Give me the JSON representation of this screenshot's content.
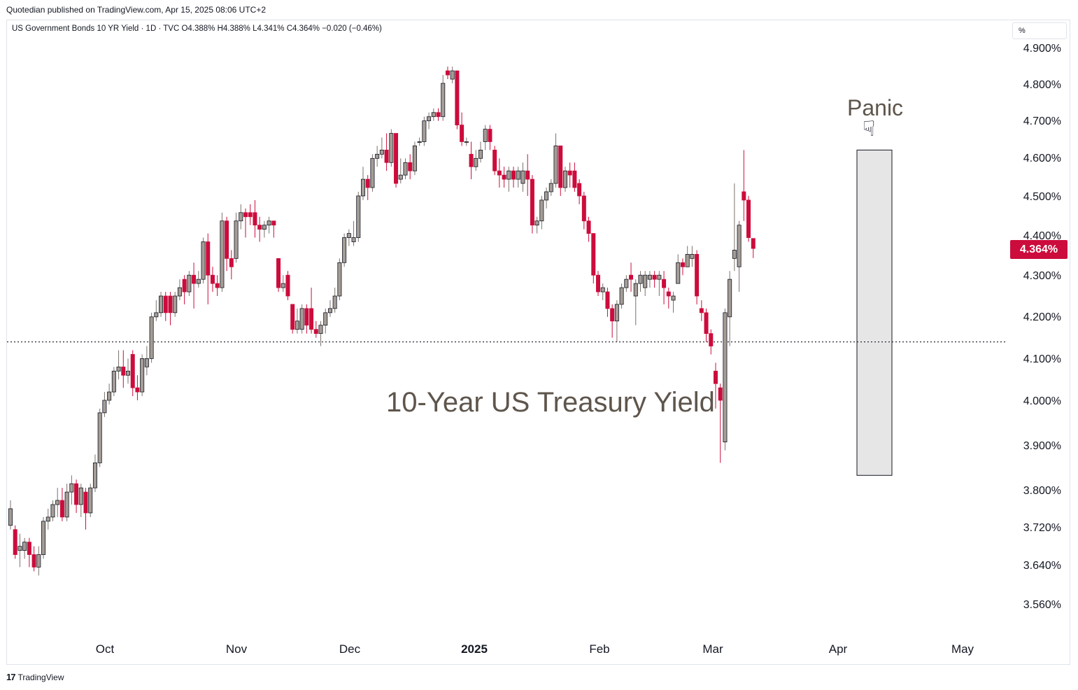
{
  "publisher": "Quotedian published on TradingView.com, Apr 15, 2025 08:06 UTC+2",
  "symbol_line": "US Government Bonds 10 YR Yield · 1D · TVC  O4.388%  H4.388%  L4.341%  C4.364%  −0.020 (−0.46%)",
  "unit_label": "%",
  "last_price_label": "4.364%",
  "footer": {
    "logo_mark": "17",
    "brand": "TradingView"
  },
  "colors": {
    "up": "#a59d96",
    "down": "#cc0c3c",
    "annotation_text": "#5e554c",
    "highlight_box": "#e6e6e6"
  },
  "annotations": {
    "title": "10-Year US Treasury Yield",
    "panic_label": "Panic",
    "panic_icon": "pointing-down-hand-icon"
  },
  "chart_data": {
    "type": "candlestick",
    "title": "10-Year US Treasury Yield",
    "ylabel": "%",
    "ylim": [
      3.5,
      4.95
    ],
    "y_ticks": [
      "4.900%",
      "4.800%",
      "4.700%",
      "4.600%",
      "4.500%",
      "4.400%",
      "4.300%",
      "4.200%",
      "4.100%",
      "4.000%",
      "3.900%",
      "3.800%",
      "3.720%",
      "3.640%",
      "3.560%"
    ],
    "x_ticks": [
      "Oct",
      "Nov",
      "Dec",
      "2025",
      "Feb",
      "Mar",
      "Apr",
      "May"
    ],
    "reference_line": 4.14,
    "highlight_range": {
      "from_index": 156,
      "to_index": 161,
      "y_low": 3.82,
      "y_high": 4.6
    },
    "last_close": 4.364,
    "candles": [
      [
        3.7,
        3.74,
        3.69,
        3.76
      ],
      [
        3.69,
        3.63,
        3.62,
        3.7
      ],
      [
        3.64,
        3.65,
        3.6,
        3.68
      ],
      [
        3.64,
        3.66,
        3.62,
        3.67
      ],
      [
        3.66,
        3.63,
        3.6,
        3.67
      ],
      [
        3.63,
        3.6,
        3.59,
        3.65
      ],
      [
        3.6,
        3.63,
        3.58,
        3.65
      ],
      [
        3.63,
        3.71,
        3.62,
        3.72
      ],
      [
        3.71,
        3.72,
        3.69,
        3.74
      ],
      [
        3.72,
        3.75,
        3.71,
        3.76
      ],
      [
        3.75,
        3.76,
        3.72,
        3.79
      ],
      [
        3.76,
        3.72,
        3.71,
        3.79
      ],
      [
        3.72,
        3.78,
        3.71,
        3.8
      ],
      [
        3.78,
        3.8,
        3.75,
        3.82
      ],
      [
        3.8,
        3.75,
        3.73,
        3.81
      ],
      [
        3.75,
        3.79,
        3.72,
        3.8
      ],
      [
        3.78,
        3.73,
        3.69,
        3.79
      ],
      [
        3.73,
        3.79,
        3.72,
        3.8
      ],
      [
        3.79,
        3.85,
        3.78,
        3.87
      ],
      [
        3.85,
        3.97,
        3.84,
        3.98
      ],
      [
        3.97,
        4.0,
        3.96,
        4.02
      ],
      [
        4.0,
        4.02,
        3.99,
        4.04
      ],
      [
        4.02,
        4.07,
        4.01,
        4.08
      ],
      [
        4.07,
        4.08,
        4.05,
        4.12
      ],
      [
        4.08,
        4.06,
        4.03,
        4.12
      ],
      [
        4.06,
        4.07,
        4.04,
        4.1
      ],
      [
        4.11,
        4.03,
        4.01,
        4.12
      ],
      [
        4.03,
        4.02,
        4.0,
        4.06
      ],
      [
        4.02,
        4.1,
        4.01,
        4.11
      ],
      [
        4.08,
        4.1,
        4.06,
        4.13
      ],
      [
        4.1,
        4.2,
        4.09,
        4.21
      ],
      [
        4.2,
        4.21,
        4.19,
        4.24
      ],
      [
        4.21,
        4.25,
        4.2,
        4.26
      ],
      [
        4.25,
        4.21,
        4.19,
        4.26
      ],
      [
        4.25,
        4.21,
        4.18,
        4.26
      ],
      [
        4.21,
        4.25,
        4.2,
        4.26
      ],
      [
        4.25,
        4.27,
        4.24,
        4.29
      ],
      [
        4.29,
        4.26,
        4.23,
        4.3
      ],
      [
        4.26,
        4.3,
        4.25,
        4.31
      ],
      [
        4.3,
        4.28,
        4.22,
        4.33
      ],
      [
        4.28,
        4.29,
        4.27,
        4.31
      ],
      [
        4.29,
        4.38,
        4.28,
        4.39
      ],
      [
        4.38,
        4.3,
        4.23,
        4.4
      ],
      [
        4.3,
        4.28,
        4.26,
        4.32
      ],
      [
        4.28,
        4.27,
        4.25,
        4.3
      ],
      [
        4.27,
        4.43,
        4.26,
        4.45
      ],
      [
        4.43,
        4.34,
        4.31,
        4.44
      ],
      [
        4.34,
        4.32,
        4.29,
        4.36
      ],
      [
        4.34,
        4.43,
        4.33,
        4.45
      ],
      [
        4.43,
        4.45,
        4.41,
        4.47
      ],
      [
        4.45,
        4.44,
        4.39,
        4.46
      ],
      [
        4.45,
        4.44,
        4.42,
        4.47
      ],
      [
        4.45,
        4.42,
        4.39,
        4.48
      ],
      [
        4.42,
        4.41,
        4.38,
        4.44
      ],
      [
        4.41,
        4.42,
        4.39,
        4.43
      ],
      [
        4.42,
        4.43,
        4.4,
        4.44
      ],
      [
        4.43,
        4.42,
        4.39,
        4.43
      ],
      [
        4.34,
        4.27,
        4.26,
        4.34
      ],
      [
        4.27,
        4.28,
        4.26,
        4.3
      ],
      [
        4.3,
        4.25,
        4.24,
        4.31
      ],
      [
        4.23,
        4.17,
        4.16,
        4.23
      ],
      [
        4.17,
        4.19,
        4.16,
        4.22
      ],
      [
        4.17,
        4.22,
        4.16,
        4.23
      ],
      [
        4.22,
        4.18,
        4.16,
        4.23
      ],
      [
        4.22,
        4.17,
        4.16,
        4.27
      ],
      [
        4.17,
        4.16,
        4.15,
        4.19
      ],
      [
        4.16,
        4.18,
        4.13,
        4.19
      ],
      [
        4.18,
        4.21,
        4.16,
        4.22
      ],
      [
        4.21,
        4.22,
        4.2,
        4.24
      ],
      [
        4.22,
        4.25,
        4.21,
        4.27
      ],
      [
        4.25,
        4.33,
        4.24,
        4.34
      ],
      [
        4.33,
        4.39,
        4.32,
        4.4
      ],
      [
        4.39,
        4.4,
        4.37,
        4.41
      ],
      [
        4.38,
        4.39,
        4.37,
        4.43
      ],
      [
        4.39,
        4.49,
        4.38,
        4.5
      ],
      [
        4.49,
        4.53,
        4.48,
        4.56
      ],
      [
        4.53,
        4.51,
        4.48,
        4.54
      ],
      [
        4.51,
        4.58,
        4.5,
        4.59
      ],
      [
        4.58,
        4.59,
        4.56,
        4.61
      ],
      [
        4.59,
        4.6,
        4.58,
        4.63
      ],
      [
        4.6,
        4.57,
        4.55,
        4.64
      ],
      [
        4.57,
        4.64,
        4.56,
        4.65
      ],
      [
        4.64,
        4.52,
        4.51,
        4.64
      ],
      [
        4.53,
        4.54,
        4.52,
        4.58
      ],
      [
        4.54,
        4.57,
        4.53,
        4.58
      ],
      [
        4.57,
        4.55,
        4.53,
        4.59
      ],
      [
        4.55,
        4.61,
        4.54,
        4.62
      ],
      [
        4.62,
        4.62,
        4.61,
        4.63
      ],
      [
        4.62,
        4.67,
        4.61,
        4.68
      ],
      [
        4.67,
        4.68,
        4.65,
        4.69
      ],
      [
        4.68,
        4.69,
        4.67,
        4.7
      ],
      [
        4.69,
        4.68,
        4.67,
        4.7
      ],
      [
        4.68,
        4.76,
        4.67,
        4.78
      ],
      [
        4.79,
        4.78,
        4.77,
        4.8
      ],
      [
        4.77,
        4.79,
        4.76,
        4.8
      ],
      [
        4.79,
        4.66,
        4.65,
        4.79
      ],
      [
        4.66,
        4.62,
        4.61,
        4.69
      ],
      [
        4.62,
        4.62,
        4.61,
        4.63
      ],
      [
        4.59,
        4.56,
        4.53,
        4.62
      ],
      [
        4.56,
        4.58,
        4.55,
        4.6
      ],
      [
        4.58,
        4.6,
        4.57,
        4.62
      ],
      [
        4.62,
        4.65,
        4.6,
        4.66
      ],
      [
        4.65,
        4.62,
        4.6,
        4.66
      ],
      [
        4.6,
        4.55,
        4.54,
        4.61
      ],
      [
        4.55,
        4.54,
        4.51,
        4.58
      ],
      [
        4.54,
        4.53,
        4.51,
        4.56
      ],
      [
        4.53,
        4.55,
        4.5,
        4.56
      ],
      [
        4.55,
        4.53,
        4.51,
        4.56
      ],
      [
        4.53,
        4.55,
        4.51,
        4.56
      ],
      [
        4.52,
        4.55,
        4.5,
        4.57
      ],
      [
        4.55,
        4.53,
        4.49,
        4.59
      ],
      [
        4.53,
        4.42,
        4.4,
        4.54
      ],
      [
        4.42,
        4.43,
        4.4,
        4.44
      ],
      [
        4.43,
        4.48,
        4.41,
        4.49
      ],
      [
        4.48,
        4.5,
        4.46,
        4.51
      ],
      [
        4.5,
        4.52,
        4.49,
        4.53
      ],
      [
        4.52,
        4.61,
        4.51,
        4.64
      ],
      [
        4.61,
        4.51,
        4.49,
        4.61
      ],
      [
        4.51,
        4.55,
        4.5,
        4.56
      ],
      [
        4.55,
        4.54,
        4.51,
        4.57
      ],
      [
        4.55,
        4.51,
        4.5,
        4.57
      ],
      [
        4.52,
        4.49,
        4.47,
        4.53
      ],
      [
        4.49,
        4.43,
        4.41,
        4.5
      ],
      [
        4.43,
        4.4,
        4.38,
        4.44
      ],
      [
        4.4,
        4.3,
        4.28,
        4.4
      ],
      [
        4.3,
        4.26,
        4.25,
        4.31
      ],
      [
        4.26,
        4.27,
        4.24,
        4.28
      ],
      [
        4.26,
        4.22,
        4.2,
        4.27
      ],
      [
        4.22,
        4.19,
        4.15,
        4.23
      ],
      [
        4.19,
        4.23,
        4.14,
        4.24
      ],
      [
        4.23,
        4.27,
        4.22,
        4.28
      ],
      [
        4.27,
        4.29,
        4.26,
        4.3
      ],
      [
        4.3,
        4.29,
        4.26,
        4.33
      ],
      [
        4.25,
        4.28,
        4.18,
        4.29
      ],
      [
        4.28,
        4.3,
        4.26,
        4.31
      ],
      [
        4.27,
        4.3,
        4.25,
        4.31
      ],
      [
        4.29,
        4.3,
        4.27,
        4.31
      ],
      [
        4.3,
        4.29,
        4.27,
        4.31
      ],
      [
        4.29,
        4.3,
        4.25,
        4.31
      ],
      [
        4.29,
        4.27,
        4.23,
        4.31
      ],
      [
        4.26,
        4.25,
        4.22,
        4.27
      ],
      [
        4.24,
        4.25,
        4.21,
        4.26
      ],
      [
        4.28,
        4.33,
        4.28,
        4.35
      ],
      [
        4.33,
        4.32,
        4.3,
        4.34
      ],
      [
        4.32,
        4.35,
        4.32,
        4.37
      ],
      [
        4.34,
        4.35,
        4.32,
        4.37
      ],
      [
        4.35,
        4.25,
        4.23,
        4.36
      ],
      [
        4.22,
        4.21,
        4.19,
        4.24
      ],
      [
        4.21,
        4.16,
        4.14,
        4.22
      ],
      [
        4.16,
        4.13,
        4.11,
        4.17
      ],
      [
        4.07,
        4.04,
        3.98,
        4.09
      ],
      [
        4.03,
        4.0,
        3.85,
        4.04
      ],
      [
        3.9,
        4.21,
        3.88,
        4.22
      ],
      [
        4.2,
        4.29,
        4.13,
        4.31
      ],
      [
        4.34,
        4.36,
        4.31,
        4.52
      ],
      [
        4.32,
        4.42,
        4.26,
        4.43
      ],
      [
        4.5,
        4.48,
        4.43,
        4.6
      ],
      [
        4.48,
        4.39,
        4.38,
        4.49
      ],
      [
        4.388,
        4.364,
        4.341,
        4.388
      ]
    ]
  }
}
